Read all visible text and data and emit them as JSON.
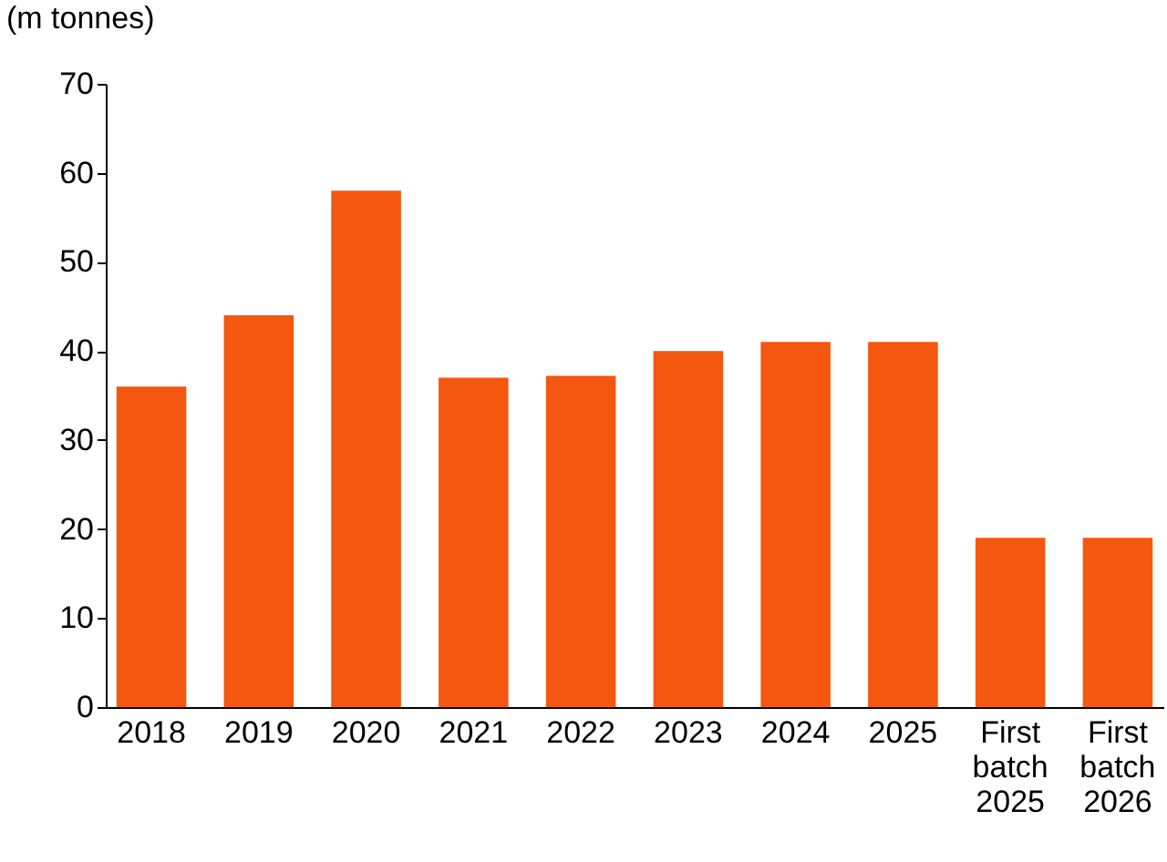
{
  "chart_data": {
    "type": "bar",
    "ylabel": "(m tonnes)",
    "categories": [
      "2018",
      "2019",
      "2020",
      "2021",
      "2022",
      "2023",
      "2024",
      "2025",
      "First batch 2025",
      "First batch 2026"
    ],
    "values": [
      36,
      44,
      58,
      37,
      37.2,
      40,
      41,
      41,
      19,
      19
    ],
    "color": "#f4570f",
    "ylim": [
      0,
      70
    ],
    "yticks": [
      0,
      10,
      20,
      30,
      40,
      50,
      60,
      70
    ],
    "grid": false
  }
}
